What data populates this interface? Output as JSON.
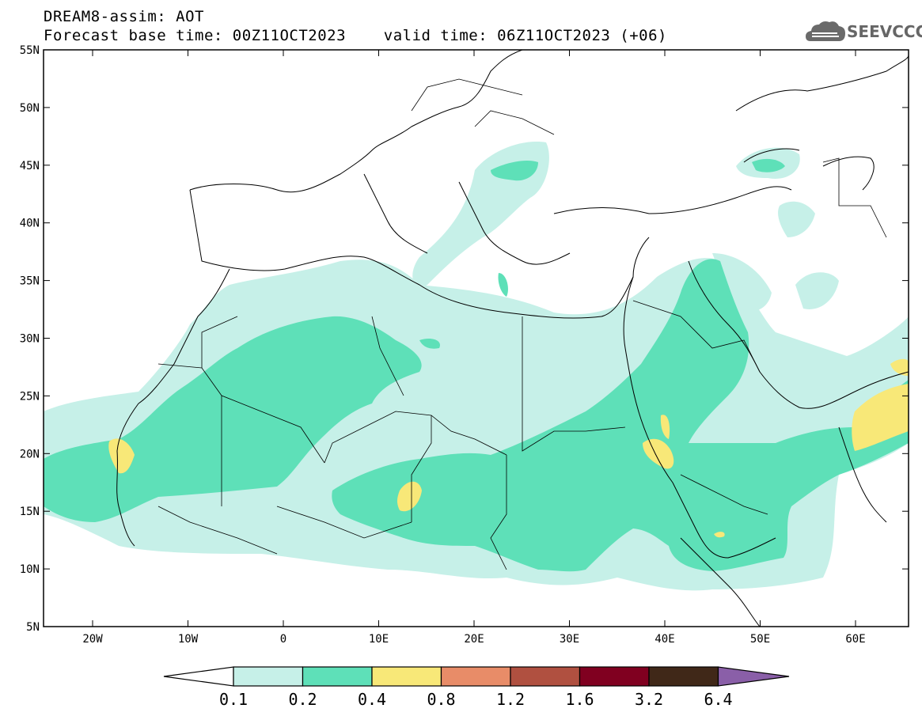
{
  "title": {
    "line1": "DREAM8-assim: AOT",
    "line2": "Forecast base time: 00Z11OCT2023    valid time: 06Z11OCT2023 (+06)"
  },
  "logo": {
    "text": "SEEVCCC",
    "icon": "cloud-icon"
  },
  "axes": {
    "lat_labels": [
      "55N",
      "50N",
      "45N",
      "40N",
      "35N",
      "30N",
      "25N",
      "20N",
      "15N",
      "10N",
      "5N"
    ],
    "lon_labels": [
      "20W",
      "10W",
      "0",
      "10E",
      "20E",
      "30E",
      "40E",
      "50E",
      "60E"
    ]
  },
  "legend": {
    "colors": [
      "#c6f0e8",
      "#5ee0b8",
      "#f8e878",
      "#e88c68",
      "#b05040",
      "#800020",
      "#402818"
    ],
    "under_color": "#ffffff",
    "over_color": "#8a5fa8",
    "labels": [
      "0.1",
      "0.2",
      "0.4",
      "0.8",
      "1.2",
      "1.6",
      "3.2",
      "6.4"
    ]
  }
}
